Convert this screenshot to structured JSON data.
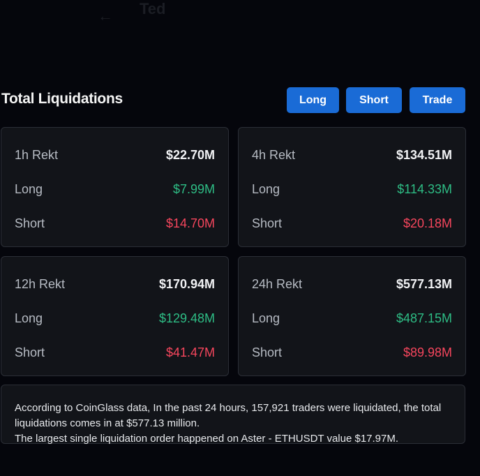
{
  "header": {
    "back_icon": "arrow-left-icon",
    "name": "Ted"
  },
  "title": "Total Liquidations",
  "buttons": {
    "long": "Long",
    "short": "Short",
    "trade": "Trade"
  },
  "colors": {
    "accent": "#1a6bd6",
    "long": "#2ebd85",
    "short": "#f6465d"
  },
  "cards": [
    {
      "label": "1h Rekt",
      "total": "$22.70M",
      "long_label": "Long",
      "long": "$7.99M",
      "short_label": "Short",
      "short": "$14.70M"
    },
    {
      "label": "4h Rekt",
      "total": "$134.51M",
      "long_label": "Long",
      "long": "$114.33M",
      "short_label": "Short",
      "short": "$20.18M"
    },
    {
      "label": "12h Rekt",
      "total": "$170.94M",
      "long_label": "Long",
      "long": "$129.48M",
      "short_label": "Short",
      "short": "$41.47M"
    },
    {
      "label": "24h Rekt",
      "total": "$577.13M",
      "long_label": "Long",
      "long": "$487.15M",
      "short_label": "Short",
      "short": "$89.98M"
    }
  ],
  "summary": {
    "line1": "According to CoinGlass data, In the past 24 hours, 157,921 traders were liquidated, the total liquidations comes in at $577.13 million.",
    "line2": "The largest single liquidation order happened on Aster - ETHUSDT value $17.97M."
  }
}
